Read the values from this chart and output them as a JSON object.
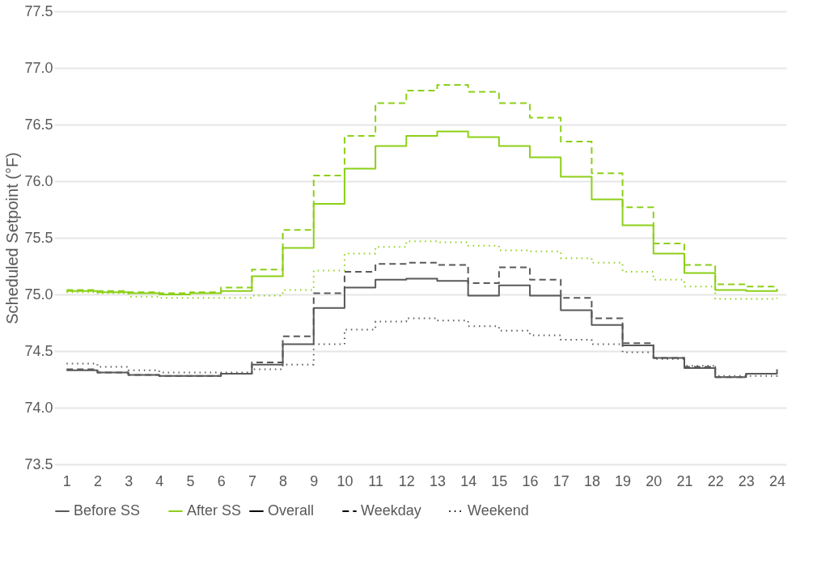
{
  "chart_data": {
    "type": "step",
    "ylabel": "Scheduled Setpoint (°F)",
    "x": [
      1,
      2,
      3,
      4,
      5,
      6,
      7,
      8,
      9,
      10,
      11,
      12,
      13,
      14,
      15,
      16,
      17,
      18,
      19,
      20,
      21,
      22,
      23,
      24
    ],
    "xlim": [
      0.6,
      24.3
    ],
    "xticks": [
      1,
      2,
      3,
      4,
      5,
      6,
      7,
      8,
      9,
      10,
      11,
      12,
      13,
      14,
      15,
      16,
      17,
      18,
      19,
      20,
      21,
      22,
      23,
      24
    ],
    "ylim": [
      73.5,
      77.5
    ],
    "yticks": [
      73.5,
      {
        "value": 74,
        "label": "74.0"
      },
      74.5,
      {
        "value": 75,
        "label": "75.0"
      },
      75.5,
      {
        "value": 76,
        "label": "76.0"
      },
      76.5,
      {
        "value": 77,
        "label": "77.0"
      },
      77.5
    ],
    "grid": "y",
    "legend": "bottom",
    "annotations": [
      "Overall",
      "Weekday",
      "Weekend"
    ],
    "series": [
      {
        "name": "Before SS",
        "color": "#595959",
        "line_style": "solid",
        "values": [
          74.33,
          74.31,
          74.29,
          74.28,
          74.28,
          74.3,
          74.38,
          74.56,
          74.88,
          75.06,
          75.13,
          75.14,
          75.12,
          74.99,
          75.08,
          74.99,
          74.86,
          74.73,
          74.55,
          74.44,
          74.35,
          74.27,
          74.3,
          74.34
        ]
      },
      {
        "color": "#595959",
        "line_style": "dashed",
        "values": [
          74.34,
          74.31,
          74.29,
          74.28,
          74.28,
          74.3,
          74.4,
          74.63,
          75.01,
          75.2,
          75.27,
          75.28,
          75.26,
          75.1,
          75.24,
          75.13,
          74.97,
          74.79,
          74.57,
          74.44,
          74.36,
          74.27,
          74.3,
          74.3
        ]
      },
      {
        "color": "#595959",
        "line_style": "dotted",
        "values": [
          74.39,
          74.36,
          74.33,
          74.31,
          74.31,
          74.31,
          74.34,
          74.38,
          74.56,
          74.69,
          74.76,
          74.79,
          74.77,
          74.72,
          74.68,
          74.64,
          74.6,
          74.56,
          74.49,
          74.43,
          74.37,
          74.28,
          74.28,
          74.29
        ]
      },
      {
        "name": "After SS",
        "color": "#8cd017",
        "line_style": "solid",
        "values": [
          75.03,
          75.02,
          75.01,
          75.0,
          75.01,
          75.03,
          75.16,
          75.41,
          75.8,
          76.11,
          76.31,
          76.4,
          76.44,
          76.39,
          76.31,
          76.21,
          76.04,
          75.84,
          75.61,
          75.36,
          75.19,
          75.04,
          75.03,
          75.05
        ]
      },
      {
        "color": "#8cd017",
        "line_style": "dashed",
        "values": [
          75.04,
          75.03,
          75.02,
          75.01,
          75.02,
          75.06,
          75.22,
          75.57,
          76.05,
          76.4,
          76.69,
          76.8,
          76.85,
          76.79,
          76.69,
          76.56,
          76.35,
          76.07,
          75.77,
          75.45,
          75.26,
          75.09,
          75.07,
          75.08
        ]
      },
      {
        "color": "#8cd017",
        "line_style": "dotted",
        "values": [
          75.02,
          75.01,
          74.98,
          74.97,
          74.97,
          74.97,
          74.99,
          75.04,
          75.21,
          75.36,
          75.42,
          75.47,
          75.46,
          75.43,
          75.39,
          75.38,
          75.32,
          75.28,
          75.2,
          75.13,
          75.07,
          74.96,
          74.96,
          74.97
        ]
      }
    ]
  }
}
